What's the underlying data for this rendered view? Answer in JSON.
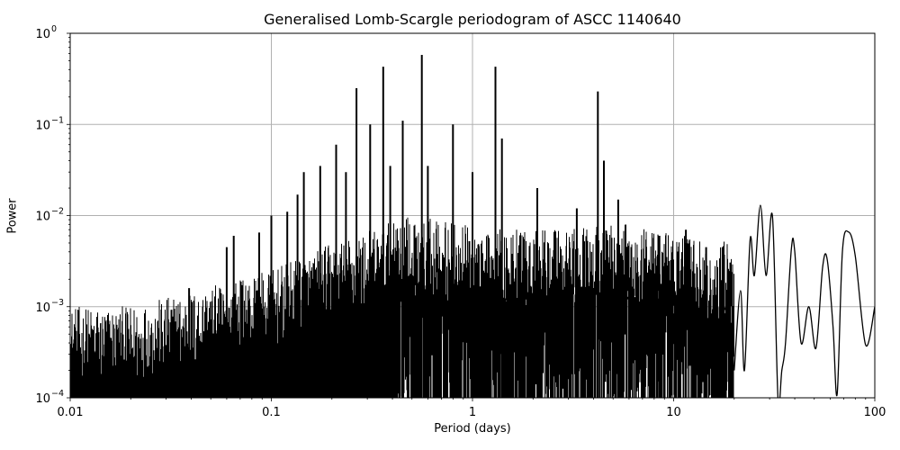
{
  "chart_data": {
    "type": "line",
    "title": "Generalised Lomb-Scargle periodogram of ASCC 1140640",
    "xlabel": "Period (days)",
    "ylabel": "Power",
    "xscale": "log",
    "yscale": "log",
    "xlim": [
      0.01,
      100
    ],
    "ylim": [
      0.0001,
      1
    ],
    "x_ticks": [
      {
        "value": 0.01,
        "label": "0.01"
      },
      {
        "value": 0.1,
        "label": "0.1"
      },
      {
        "value": 1,
        "label": "1"
      },
      {
        "value": 10,
        "label": "10"
      },
      {
        "value": 100,
        "label": "100"
      }
    ],
    "y_ticks": [
      {
        "value": 0.0001,
        "base": "10",
        "exp": "−4"
      },
      {
        "value": 0.001,
        "base": "10",
        "exp": "−3"
      },
      {
        "value": 0.01,
        "base": "10",
        "exp": "−2"
      },
      {
        "value": 0.1,
        "base": "10",
        "exp": "−1"
      },
      {
        "value": 1,
        "base": "10",
        "exp": "0"
      }
    ],
    "grid": true,
    "legend": null,
    "line_color": "#000000",
    "grid_color": "#b0b0b0",
    "noise_envelope": {
      "description": "Dense oscillating periodogram; upper envelope of noise rises with period",
      "points": [
        [
          0.01,
          0.0006
        ],
        [
          0.02,
          0.0006
        ],
        [
          0.05,
          0.001
        ],
        [
          0.1,
          0.0015
        ],
        [
          0.2,
          0.003
        ],
        [
          0.5,
          0.006
        ],
        [
          1,
          0.005
        ],
        [
          2,
          0.004
        ],
        [
          5,
          0.005
        ],
        [
          10,
          0.004
        ],
        [
          20,
          0.003
        ]
      ]
    },
    "peaks": [
      {
        "period": 0.039,
        "power": 0.0016
      },
      {
        "period": 0.06,
        "power": 0.0045
      },
      {
        "period": 0.065,
        "power": 0.006
      },
      {
        "period": 0.087,
        "power": 0.0065
      },
      {
        "period": 0.1,
        "power": 0.01
      },
      {
        "period": 0.12,
        "power": 0.011
      },
      {
        "period": 0.135,
        "power": 0.017
      },
      {
        "period": 0.145,
        "power": 0.03
      },
      {
        "period": 0.175,
        "power": 0.035
      },
      {
        "period": 0.21,
        "power": 0.06
      },
      {
        "period": 0.235,
        "power": 0.03
      },
      {
        "period": 0.265,
        "power": 0.25
      },
      {
        "period": 0.31,
        "power": 0.1
      },
      {
        "period": 0.36,
        "power": 0.43
      },
      {
        "period": 0.39,
        "power": 0.035
      },
      {
        "period": 0.45,
        "power": 0.11
      },
      {
        "period": 0.56,
        "power": 0.58
      },
      {
        "period": 0.6,
        "power": 0.035
      },
      {
        "period": 0.8,
        "power": 0.1
      },
      {
        "period": 1.0,
        "power": 0.03
      },
      {
        "period": 1.3,
        "power": 0.43
      },
      {
        "period": 1.4,
        "power": 0.07
      },
      {
        "period": 2.1,
        "power": 0.02
      },
      {
        "period": 3.3,
        "power": 0.012
      },
      {
        "period": 4.2,
        "power": 0.23
      },
      {
        "period": 4.5,
        "power": 0.04
      },
      {
        "period": 5.3,
        "power": 0.015
      },
      {
        "period": 8.5,
        "power": 0.006
      },
      {
        "period": 11.5,
        "power": 0.007
      },
      {
        "period": 14.5,
        "power": 0.0045
      },
      {
        "period": 17.5,
        "power": 0.0045
      },
      {
        "period": 20.5,
        "power": 0.0023
      },
      {
        "period": 24,
        "power": 0.0055
      },
      {
        "period": 27,
        "power": 0.013
      },
      {
        "period": 31,
        "power": 0.0098
      },
      {
        "period": 38.5,
        "power": 0.0044
      },
      {
        "period": 47,
        "power": 0.001
      },
      {
        "period": 58,
        "power": 0.0033
      },
      {
        "period": 74,
        "power": 0.0066
      },
      {
        "period": 100,
        "power": 0.001
      }
    ],
    "long_period_curve": [
      [
        20,
        0.0002
      ],
      [
        21.5,
        0.0015
      ],
      [
        22.5,
        0.0002
      ],
      [
        24,
        0.0055
      ],
      [
        25.2,
        0.0022
      ],
      [
        27,
        0.013
      ],
      [
        28.8,
        0.0022
      ],
      [
        31,
        0.0098
      ],
      [
        33,
        0.0001
      ],
      [
        34.5,
        0.0002
      ],
      [
        36,
        0.0004
      ],
      [
        38.5,
        0.0044
      ],
      [
        40,
        0.004
      ],
      [
        43,
        0.0004
      ],
      [
        47,
        0.001
      ],
      [
        51,
        0.00035
      ],
      [
        55,
        0.0027
      ],
      [
        58,
        0.0033
      ],
      [
        62,
        0.0006
      ],
      [
        65,
        0.00011
      ],
      [
        69,
        0.004
      ],
      [
        74,
        0.0066
      ],
      [
        80,
        0.0036
      ],
      [
        90,
        0.00038
      ],
      [
        100,
        0.001
      ]
    ]
  }
}
